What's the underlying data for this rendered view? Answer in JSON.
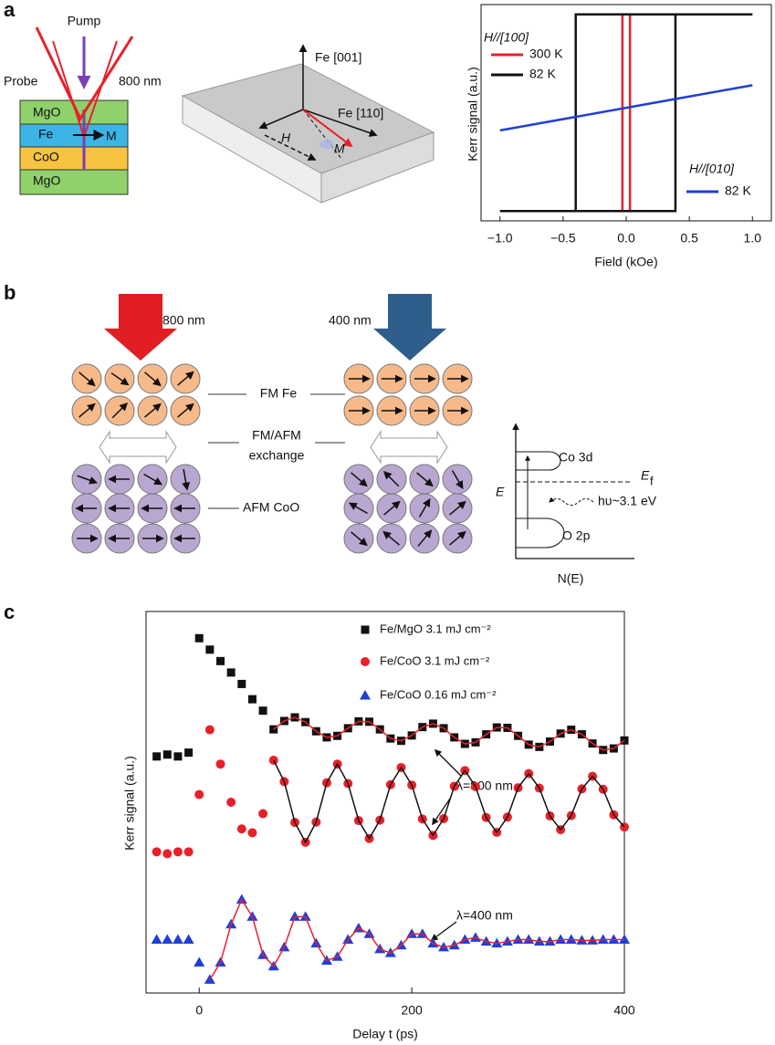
{
  "panel_labels": [
    "a",
    "b",
    "c"
  ],
  "schematic_a": {
    "pump": "Pump",
    "probe": "Probe",
    "wavelength": "800 nm",
    "layers": [
      "MgO",
      "Fe",
      "CoO",
      "MgO"
    ],
    "magnetization": "M",
    "axes": [
      "Fe [001]",
      "Fe [110]"
    ],
    "field": "H",
    "moment": "M"
  },
  "diagram_b": {
    "beams": [
      "800 nm",
      "400 nm"
    ],
    "layer_labels": [
      "FM Fe",
      "FM/AFM",
      "exchange",
      "AFM CoO"
    ],
    "dos": {
      "upper": "Co 3d",
      "lower": "O 2p",
      "energy": "E",
      "fermi": "E",
      "fermi_sub": "f",
      "photon": "hυ~3.1 eV",
      "x_label": "N(E)"
    }
  },
  "chart_data": [
    {
      "type": "line",
      "x_label": "Field (kOe)",
      "y_label": "Kerr signal (a.u.)",
      "legend_titles": [
        "H//[100]",
        "H//[010]"
      ],
      "xlim": [
        -1.15,
        1.15
      ],
      "ylim": [
        -1.1,
        1.1
      ],
      "xticks": [
        {
          "value": -1,
          "label": "−1.0"
        },
        {
          "value": -0.5,
          "label": "−0.5"
        },
        {
          "value": 0,
          "label": "0.0"
        },
        {
          "value": 0.5,
          "label": "0.5"
        },
        {
          "value": 1,
          "label": "1.0"
        }
      ],
      "series": [
        {
          "name": "300 K",
          "color": "#e8202a",
          "x": [
            -1,
            0.03,
            0.03,
            1,
            -0.03,
            -0.03,
            -1
          ],
          "values": [
            -1,
            -1,
            1,
            1,
            1,
            -1,
            -1
          ]
        },
        {
          "name": "82 K",
          "color": "#111111",
          "x": [
            -1,
            0.39,
            0.39,
            1,
            -0.4,
            -0.4,
            -1
          ],
          "values": [
            -1,
            -1,
            1,
            1,
            1,
            -1,
            -1
          ]
        },
        {
          "name": "82 K",
          "color": "#1f3fd8",
          "x": [
            -1,
            1
          ],
          "values": [
            -0.18,
            0.28
          ]
        }
      ]
    },
    {
      "type": "scatter",
      "x_label": "Delay t (ps)",
      "y_label": "Kerr signal (a.u.)",
      "annotations": [
        "λ=800 nm",
        "λ=400 nm"
      ],
      "xlim": [
        -50,
        400
      ],
      "ylim": [
        0,
        100
      ],
      "xticks": [
        0,
        200,
        400
      ],
      "x": [
        -40,
        -30,
        -20,
        -10,
        0,
        10,
        20,
        30,
        40,
        50,
        60,
        70,
        80,
        90,
        100,
        110,
        120,
        130,
        140,
        150,
        160,
        170,
        180,
        190,
        200,
        210,
        220,
        230,
        240,
        250,
        260,
        270,
        280,
        290,
        300,
        310,
        320,
        330,
        340,
        350,
        360,
        370,
        380,
        390,
        400
      ],
      "series": [
        {
          "name": "Fe/MgO 3.1 mJ cm⁻²",
          "color": "#111111",
          "marker": "square",
          "values": [
            62,
            62.5,
            62,
            63,
            93,
            90,
            87,
            84,
            81,
            77,
            74,
            69.1,
            71.3,
            72.25,
            71,
            68.6,
            67,
            67.4,
            69.4,
            71.2,
            71.1,
            69.1,
            66.7,
            66.1,
            67.5,
            69.7,
            70.6,
            69.4,
            67,
            65.3,
            65.7,
            67.8,
            69.6,
            69.5,
            67.4,
            65.1,
            64.5,
            65.9,
            68,
            69,
            67.8,
            65.4,
            63.7,
            64.1,
            66.2
          ]
        },
        {
          "name": "Fe/CoO 3.1 mJ cm⁻²",
          "color": "#e8202a",
          "marker": "circle",
          "values": [
            37,
            36.5,
            37,
            37,
            52,
            69,
            60,
            50,
            43,
            42,
            47,
            61,
            55.4,
            44.7,
            39.5,
            44.8,
            55.1,
            60,
            54.9,
            45.2,
            40.5,
            45.3,
            54.6,
            59.1,
            54.5,
            45.6,
            41.3,
            45.7,
            54.2,
            58.3,
            54.1,
            46,
            42.1,
            46.1,
            53.8,
            57.5,
            53.7,
            46.4,
            42.8,
            46.5,
            53.5,
            56.8,
            53.4,
            46.7,
            43.5
          ]
        },
        {
          "name": "Fe/CoO 0.16 mJ cm⁻²",
          "color": "#1f3fd8",
          "marker": "triangle",
          "values": [
            14,
            14,
            14,
            14,
            8,
            3.5,
            8,
            18,
            24.5,
            20,
            10,
            7,
            12,
            20,
            20,
            13,
            8.5,
            9.5,
            14,
            17,
            15.5,
            11.5,
            10.5,
            12.5,
            15.5,
            15.5,
            13,
            12,
            12.5,
            14,
            14.5,
            13.5,
            13,
            13.5,
            14,
            14,
            13.5,
            13.5,
            14,
            14,
            13.8,
            13.8,
            14,
            14,
            14
          ]
        }
      ],
      "fits": [
        {
          "color": "#e8202a",
          "x": [
            70,
            80,
            90,
            100,
            110,
            120,
            130,
            140,
            150,
            160,
            170,
            180,
            190,
            200,
            210,
            220,
            230,
            240,
            250,
            260,
            270,
            280,
            290,
            300,
            310,
            320,
            330,
            340,
            350,
            360,
            370,
            380,
            390,
            400
          ],
          "values": [
            69.1,
            71.3,
            72.25,
            71,
            68.6,
            67,
            67.4,
            69.4,
            71.2,
            71.1,
            69.1,
            66.7,
            66.1,
            67.5,
            69.7,
            70.6,
            69.4,
            67,
            65.3,
            65.7,
            67.8,
            69.6,
            69.5,
            67.4,
            65.1,
            64.5,
            65.9,
            68,
            69,
            67.8,
            65.4,
            63.7,
            64.1,
            66.2
          ]
        },
        {
          "color": "#111111",
          "x": [
            70,
            80,
            90,
            100,
            110,
            120,
            130,
            140,
            150,
            160,
            170,
            180,
            190,
            200,
            210,
            220,
            230,
            240,
            250,
            260,
            270,
            280,
            290,
            300,
            310,
            320,
            330,
            340,
            350,
            360,
            370,
            380,
            390,
            400
          ],
          "values": [
            61,
            55.4,
            44.7,
            39.5,
            44.8,
            55.1,
            60,
            54.9,
            45.2,
            40.5,
            45.3,
            54.6,
            59.1,
            54.5,
            45.6,
            41.3,
            45.7,
            54.2,
            58.3,
            54.1,
            46,
            42.1,
            46.1,
            53.8,
            57.5,
            53.7,
            46.4,
            42.8,
            46.5,
            53.5,
            56.8,
            53.4,
            46.7,
            43.5
          ]
        },
        {
          "color": "#e8202a",
          "x": [
            10,
            20,
            30,
            40,
            50,
            60,
            70,
            80,
            90,
            100,
            110,
            120,
            130,
            140,
            150,
            160,
            170,
            180,
            190,
            200,
            210,
            220,
            230,
            240,
            250,
            260,
            270,
            280,
            290,
            300,
            310,
            320,
            330,
            340,
            350,
            360,
            370,
            380,
            390,
            400
          ],
          "values": [
            3.5,
            8,
            18,
            24.5,
            20,
            10,
            7,
            12,
            20,
            20,
            13,
            8.5,
            9.5,
            14,
            17,
            15.5,
            11.5,
            10.5,
            12.5,
            15.5,
            15.5,
            13,
            12,
            12.5,
            14,
            14.5,
            13.5,
            13,
            13.5,
            14,
            14,
            13.5,
            13.5,
            14,
            14,
            13.8,
            13.8,
            14,
            14,
            14
          ]
        }
      ]
    }
  ]
}
